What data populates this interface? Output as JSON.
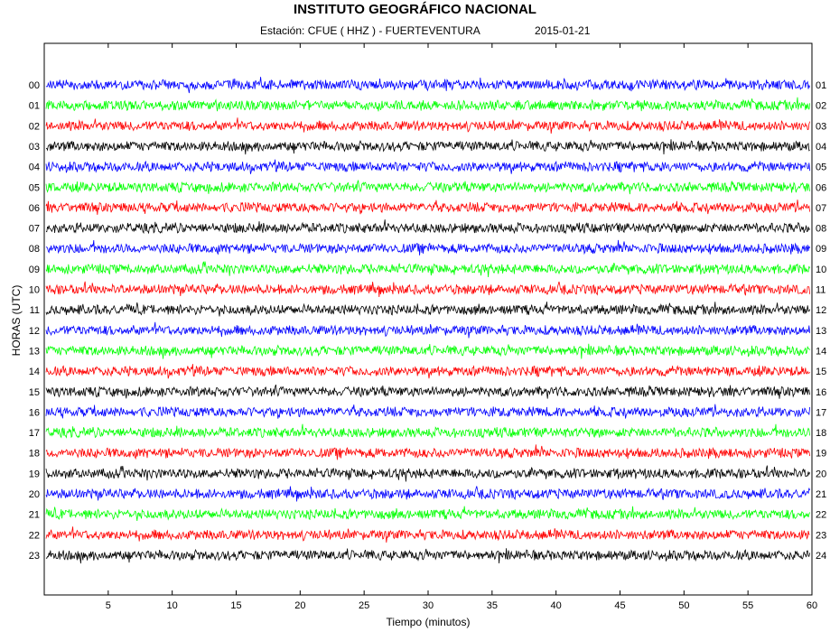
{
  "header": {
    "title": "INSTITUTO GEOGRÁFICO NACIONAL",
    "station": "Estación:  CFUE ( HHZ ) - FUERTEVENTURA",
    "date": "2015-01-21"
  },
  "chart_data": {
    "type": "line",
    "title": "INSTITUTO GEOGRÁFICO NACIONAL",
    "xlabel": "Tiempo (minutos)",
    "ylabel": "HORAS (UTC)",
    "xlim": [
      0,
      60
    ],
    "x_ticks": [
      5,
      10,
      15,
      20,
      25,
      30,
      35,
      40,
      45,
      50,
      55,
      60
    ],
    "left_hour_labels": [
      "00",
      "01",
      "02",
      "03",
      "04",
      "05",
      "06",
      "07",
      "08",
      "09",
      "10",
      "11",
      "12",
      "13",
      "14",
      "15",
      "16",
      "17",
      "18",
      "19",
      "20",
      "21",
      "22",
      "23"
    ],
    "right_hour_labels": [
      "01",
      "02",
      "03",
      "04",
      "05",
      "06",
      "07",
      "08",
      "09",
      "10",
      "11",
      "12",
      "13",
      "14",
      "15",
      "16",
      "17",
      "18",
      "19",
      "20",
      "21",
      "22",
      "23",
      "24"
    ],
    "trace_colors": [
      "#0000ff",
      "#00ff00",
      "#ff0000",
      "#000000"
    ],
    "grid": false,
    "legend": "none"
  }
}
